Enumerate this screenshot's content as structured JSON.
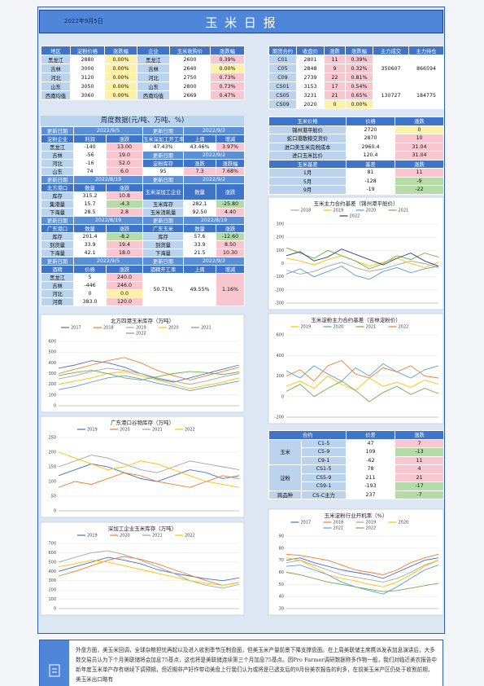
{
  "header": {
    "date": "2022年9月5日",
    "title": "玉 米 日 报"
  },
  "summary": {
    "rows": [
      [
        "地区",
        "淀粉价格",
        "涨跌幅",
        "企业",
        "玉米收购价",
        "涨跌幅"
      ],
      [
        "黑龙江",
        "2880",
        "0.00%",
        "黑龙江",
        "2600",
        "0.39%"
      ],
      [
        "吉林",
        "3000",
        "0.00%",
        "吉林",
        "2640",
        "0.00%"
      ],
      [
        "河北",
        "3120",
        "0.00%",
        "河北",
        "2750",
        "0.73%"
      ],
      [
        "山东",
        "3050",
        "0.00%",
        "山东",
        "2800",
        "0.73%"
      ],
      [
        "西南均值",
        "3060",
        "0.00%",
        "西南均值",
        "2669",
        "0.47%"
      ]
    ]
  },
  "futures": {
    "rows": [
      [
        "期货合约",
        "收盘价",
        "涨跌",
        "涨跌幅",
        "主力成交",
        "主力持仓"
      ],
      [
        "C01",
        "2801",
        "11",
        "0.39%",
        "350607",
        "866594"
      ],
      [
        "C05",
        "2848",
        "9",
        "0.32%"
      ],
      [
        "C09",
        "2739",
        "22",
        "0.81%"
      ],
      [
        "CS01",
        "3153",
        "17",
        "0.54%",
        "130727",
        "184775"
      ],
      [
        "CS05",
        "3231",
        "21",
        "0.65%"
      ],
      [
        "CS09",
        "2020",
        "0",
        "0.00%"
      ]
    ]
  },
  "weekly": {
    "title": "周度数据(元/吨、万吨、%)",
    "rows": [
      [
        "更新日期",
        "2022/9/5",
        "更新日期",
        "2022/9/2"
      ],
      [
        "淀粉企业",
        "利润",
        "涨跌",
        "玉米深加工开工率",
        "上周",
        "增减"
      ],
      [
        "黑龙江",
        "-140",
        "13.00",
        "47.43%",
        "43.46%",
        "3.97%"
      ],
      [
        "吉林",
        "-56",
        "19.0",
        "更新日期",
        "2022/9/2"
      ],
      [
        "河北",
        "-16",
        "52.0",
        "淀粉库存",
        "涨跌",
        "涨跌幅"
      ],
      [
        "山东",
        "74",
        "6.0",
        "95",
        "7.3",
        "7.68%"
      ],
      [
        "更新日期",
        "2022/8/19",
        "更新日期",
        "2022/9/2"
      ],
      [
        "北方港口",
        "数量",
        "涨跌",
        "玉米深加工企业",
        "数量",
        "涨跌"
      ],
      [
        "库存",
        "315.2",
        "10.8"
      ],
      [
        "集港量",
        "15.7",
        "-4.3",
        "玉米库存",
        "282.1",
        "-25.80"
      ],
      [
        "下海量",
        "28.5",
        "2.8",
        "玉米消耗量",
        "92.50",
        "4.40"
      ],
      [
        "更新日期",
        "2022/8/19",
        "更新日期",
        "2022/8/19"
      ],
      [
        "广东港口",
        "数量",
        "涨跌",
        "广东玉米",
        "数量",
        "涨跌"
      ],
      [
        "库存",
        "201.4",
        "-8.2",
        "库存",
        "57.6",
        "-12.60"
      ],
      [
        "到货量",
        "33.9",
        "19.4",
        "到货量",
        "33.9",
        "8.50"
      ],
      [
        "下海量",
        "42.1",
        "18.0",
        "下海量",
        "21.5",
        "10.30"
      ],
      [
        "更新日期",
        "2022/9/5",
        "更新日期",
        "2022/9/2"
      ],
      [
        "酒精",
        "价格",
        "涨跌",
        "酒精开工率",
        "上周",
        "增减"
      ],
      [
        "黑龙江",
        "5",
        "240.0",
        "50.71%",
        "49.55%",
        "1.16%"
      ],
      [
        "吉林",
        "-446",
        "246.0"
      ],
      [
        "河北",
        "0",
        "0.0"
      ],
      [
        "河南",
        "383.0",
        "120.0"
      ]
    ]
  },
  "prices": {
    "rows": [
      [
        "玉米价格",
        "价格",
        "涨跌"
      ],
      [
        "锦州港平舱价",
        "2720",
        "0"
      ],
      [
        "蛇口港散粮交货价",
        "2870",
        "10"
      ],
      [
        "进口美玉米完税成本",
        "2960.4",
        "31.04"
      ],
      [
        "进口玉米比价",
        "120.4",
        "31.04"
      ],
      [
        "玉米基差",
        "基差",
        "涨跌"
      ],
      [
        "1月",
        "81",
        "11"
      ],
      [
        "5月",
        "-128",
        "-9"
      ],
      [
        "9月",
        "-19",
        "-22"
      ]
    ]
  },
  "spreads": {
    "rows": [
      [
        "合约",
        "价差",
        "涨跌"
      ],
      [
        "玉米",
        "C1-5",
        "47",
        "7"
      ],
      [
        "C5-9",
        "109",
        "-13"
      ],
      [
        "C9-1",
        "-62",
        "11"
      ],
      [
        "淀粉",
        "CS1-5",
        "78",
        "4"
      ],
      [
        "CS5-9",
        "211",
        "21"
      ],
      [
        "CS9-1",
        "-193",
        "-17"
      ],
      [
        "跨品种",
        "CS-C主力",
        "237",
        "-7"
      ]
    ]
  },
  "charts": [
    {
      "type": "line",
      "title": "玉米主力合约基差（锦州港平舱价）",
      "ylim": [
        -300,
        300
      ],
      "yticks": [
        -300,
        -200,
        -100,
        0,
        100,
        200,
        300
      ],
      "series": [
        {
          "name": "2018",
          "color": "#a5a5a5",
          "values": [
            -50,
            -80,
            -60,
            -20,
            10,
            -30,
            -60,
            -40,
            -10,
            20,
            0,
            -30
          ]
        },
        {
          "name": "2019",
          "color": "#ffc000",
          "values": [
            40,
            20,
            -10,
            30,
            60,
            20,
            -20,
            10,
            40,
            0,
            -30,
            10
          ]
        },
        {
          "name": "2020",
          "color": "#5b9bd5",
          "values": [
            -80,
            -40,
            -100,
            -60,
            -20,
            -90,
            -120,
            -60,
            -30,
            -70,
            -40,
            -20
          ]
        },
        {
          "name": "2021",
          "color": "#70ad47",
          "values": [
            120,
            80,
            40,
            100,
            60,
            20,
            -40,
            0,
            60,
            30,
            80,
            50
          ]
        },
        {
          "name": "2022",
          "color": "#264478",
          "values": [
            60,
            90,
            20,
            50,
            110,
            70,
            30,
            -10,
            40,
            80,
            20,
            -19
          ]
        }
      ]
    },
    {
      "type": "line",
      "title": "玉米淀粉主力合约基差（吉林淀粉价）",
      "ylim": [
        -200,
        600
      ],
      "yticks": [
        -200,
        0,
        200,
        400,
        600
      ],
      "series": [
        {
          "name": "2019",
          "color": "#ffc000",
          "values": [
            100,
            150,
            80,
            200,
            120,
            60,
            180,
            100,
            140,
            90,
            160,
            120
          ]
        },
        {
          "name": "2020",
          "color": "#5b9bd5",
          "values": [
            250,
            180,
            300,
            220,
            150,
            280,
            200,
            320,
            240,
            180,
            260,
            300
          ]
        },
        {
          "name": "2021",
          "color": "#70ad47",
          "values": [
            50,
            120,
            0,
            80,
            150,
            60,
            -50,
            40,
            100,
            20,
            80,
            30
          ]
        },
        {
          "name": "2022",
          "color": "#ed7d31",
          "values": [
            200,
            260,
            150,
            300,
            350,
            220,
            180,
            280,
            240,
            300,
            200,
            180
          ]
        }
      ]
    },
    {
      "type": "line",
      "title": "北方四港玉米库存（万吨）",
      "ylim": [
        0,
        600
      ],
      "yticks": [
        0,
        100,
        200,
        300,
        400,
        500,
        600
      ],
      "series": [
        {
          "name": "2017",
          "color": "#4472c4",
          "values": [
            350,
            380,
            420,
            400,
            360,
            300,
            250,
            220,
            260,
            300,
            340,
            380
          ]
        },
        {
          "name": "2018",
          "color": "#ed7d31",
          "values": [
            300,
            340,
            380,
            420,
            450,
            400,
            330,
            280,
            240,
            280,
            320,
            360
          ]
        },
        {
          "name": "2019",
          "color": "#a5a5a5",
          "values": [
            250,
            280,
            320,
            350,
            330,
            300,
            260,
            230,
            200,
            230,
            270,
            300
          ]
        },
        {
          "name": "2020",
          "color": "#ffc000",
          "values": [
            200,
            230,
            260,
            300,
            320,
            280,
            240,
            200,
            160,
            190,
            220,
            260
          ]
        },
        {
          "name": "2021",
          "color": "#5b9bd5",
          "values": [
            150,
            180,
            220,
            260,
            280,
            250,
            210,
            180,
            140,
            170,
            200,
            230
          ]
        },
        {
          "name": "2022",
          "color": "#70ad47",
          "values": [
            280,
            310,
            330,
            300,
            260,
            240,
            270,
            300,
            320,
            310,
            290,
            315
          ]
        }
      ]
    },
    {
      "type": "line",
      "title": "广东港口谷物库存（万吨）",
      "ylim": [
        0,
        250
      ],
      "yticks": [
        0,
        50,
        100,
        150,
        200,
        250
      ],
      "series": [
        {
          "name": "2019",
          "color": "#4472c4",
          "values": [
            120,
            140,
            160,
            150,
            130,
            110,
            100,
            120,
            140,
            130,
            110,
            120
          ]
        },
        {
          "name": "2020",
          "color": "#ed7d31",
          "values": [
            80,
            100,
            90,
            110,
            130,
            120,
            100,
            90,
            80,
            100,
            120,
            110
          ]
        },
        {
          "name": "2021",
          "color": "#a5a5a5",
          "values": [
            150,
            170,
            190,
            180,
            160,
            140,
            130,
            150,
            170,
            160,
            150,
            140
          ]
        },
        {
          "name": "2022",
          "color": "#ffc000",
          "values": [
            200,
            180,
            160,
            140,
            150,
            170,
            160,
            140,
            120,
            100,
            90,
            80
          ]
        }
      ]
    },
    {
      "type": "line",
      "title": "深加工企业玉米库存（万吨）",
      "ylim": [
        0,
        700
      ],
      "yticks": [
        0,
        100,
        200,
        300,
        400,
        500,
        600,
        700
      ],
      "series": [
        {
          "name": "2019",
          "color": "#4472c4",
          "values": [
            400,
            450,
            500,
            550,
            520,
            480,
            420,
            380,
            350,
            320,
            300,
            330
          ]
        },
        {
          "name": "2020",
          "color": "#ed7d31",
          "values": [
            350,
            400,
            460,
            520,
            560,
            530,
            480,
            420,
            360,
            300,
            250,
            280
          ]
        },
        {
          "name": "2021",
          "color": "#a5a5a5",
          "values": [
            500,
            550,
            600,
            620,
            580,
            520,
            450,
            380,
            300,
            250,
            220,
            260
          ]
        },
        {
          "name": "2022",
          "color": "#ffc000",
          "values": [
            450,
            480,
            520,
            500,
            460,
            420,
            380,
            340,
            300,
            270,
            250,
            282
          ]
        }
      ]
    },
    {
      "type": "line",
      "title": "玉米淀粉行业开机率（%）",
      "ylim": [
        30,
        90
      ],
      "yticks": [
        30,
        40,
        50,
        60,
        70,
        80,
        90
      ],
      "series": [
        {
          "name": "2017",
          "color": "#4472c4",
          "values": [
            70,
            72,
            68,
            65,
            62,
            60,
            58,
            55,
            60,
            65,
            70,
            72
          ]
        },
        {
          "name": "2018",
          "color": "#ed7d31",
          "values": [
            75,
            74,
            72,
            70,
            66,
            62,
            60,
            58,
            62,
            68,
            72,
            75
          ]
        },
        {
          "name": "2019",
          "color": "#a5a5a5",
          "values": [
            68,
            70,
            66,
            62,
            58,
            56,
            54,
            52,
            55,
            60,
            66,
            70
          ]
        },
        {
          "name": "2020",
          "color": "#ffc000",
          "values": [
            72,
            70,
            64,
            58,
            55,
            53,
            50,
            48,
            52,
            58,
            65,
            70
          ]
        },
        {
          "name": "2021",
          "color": "#5b9bd5",
          "values": [
            65,
            66,
            62,
            58,
            52,
            48,
            45,
            42,
            48,
            55,
            62,
            66
          ]
        },
        {
          "name": "2022",
          "color": "#70ad47",
          "values": [
            60,
            58,
            55,
            52,
            50,
            48,
            46,
            44,
            45,
            47,
            49,
            51
          ]
        }
      ]
    }
  ],
  "commentary": "外盘方面，美玉米回调，全球杂粮担忧再起以及进入收割季节压制盘面，但美玉米产量前景下降支撑盘面。在上周美联储主席鹰派发表加息演讲后，大多数交易员认为下个月美联储将会加息75基点，这也将是美联储连续第三个月加息75基点。因Pro Farmer调研数据称多作物一般，我们对临近美农报告中新年度玉米单产存有继续下调预期，但近期非产好作带动美盘上行我们认为或将是已透支后的9月份美农报告的利多，在前美玉米产区仍处于收割前期，美玉米出口略有"
}
